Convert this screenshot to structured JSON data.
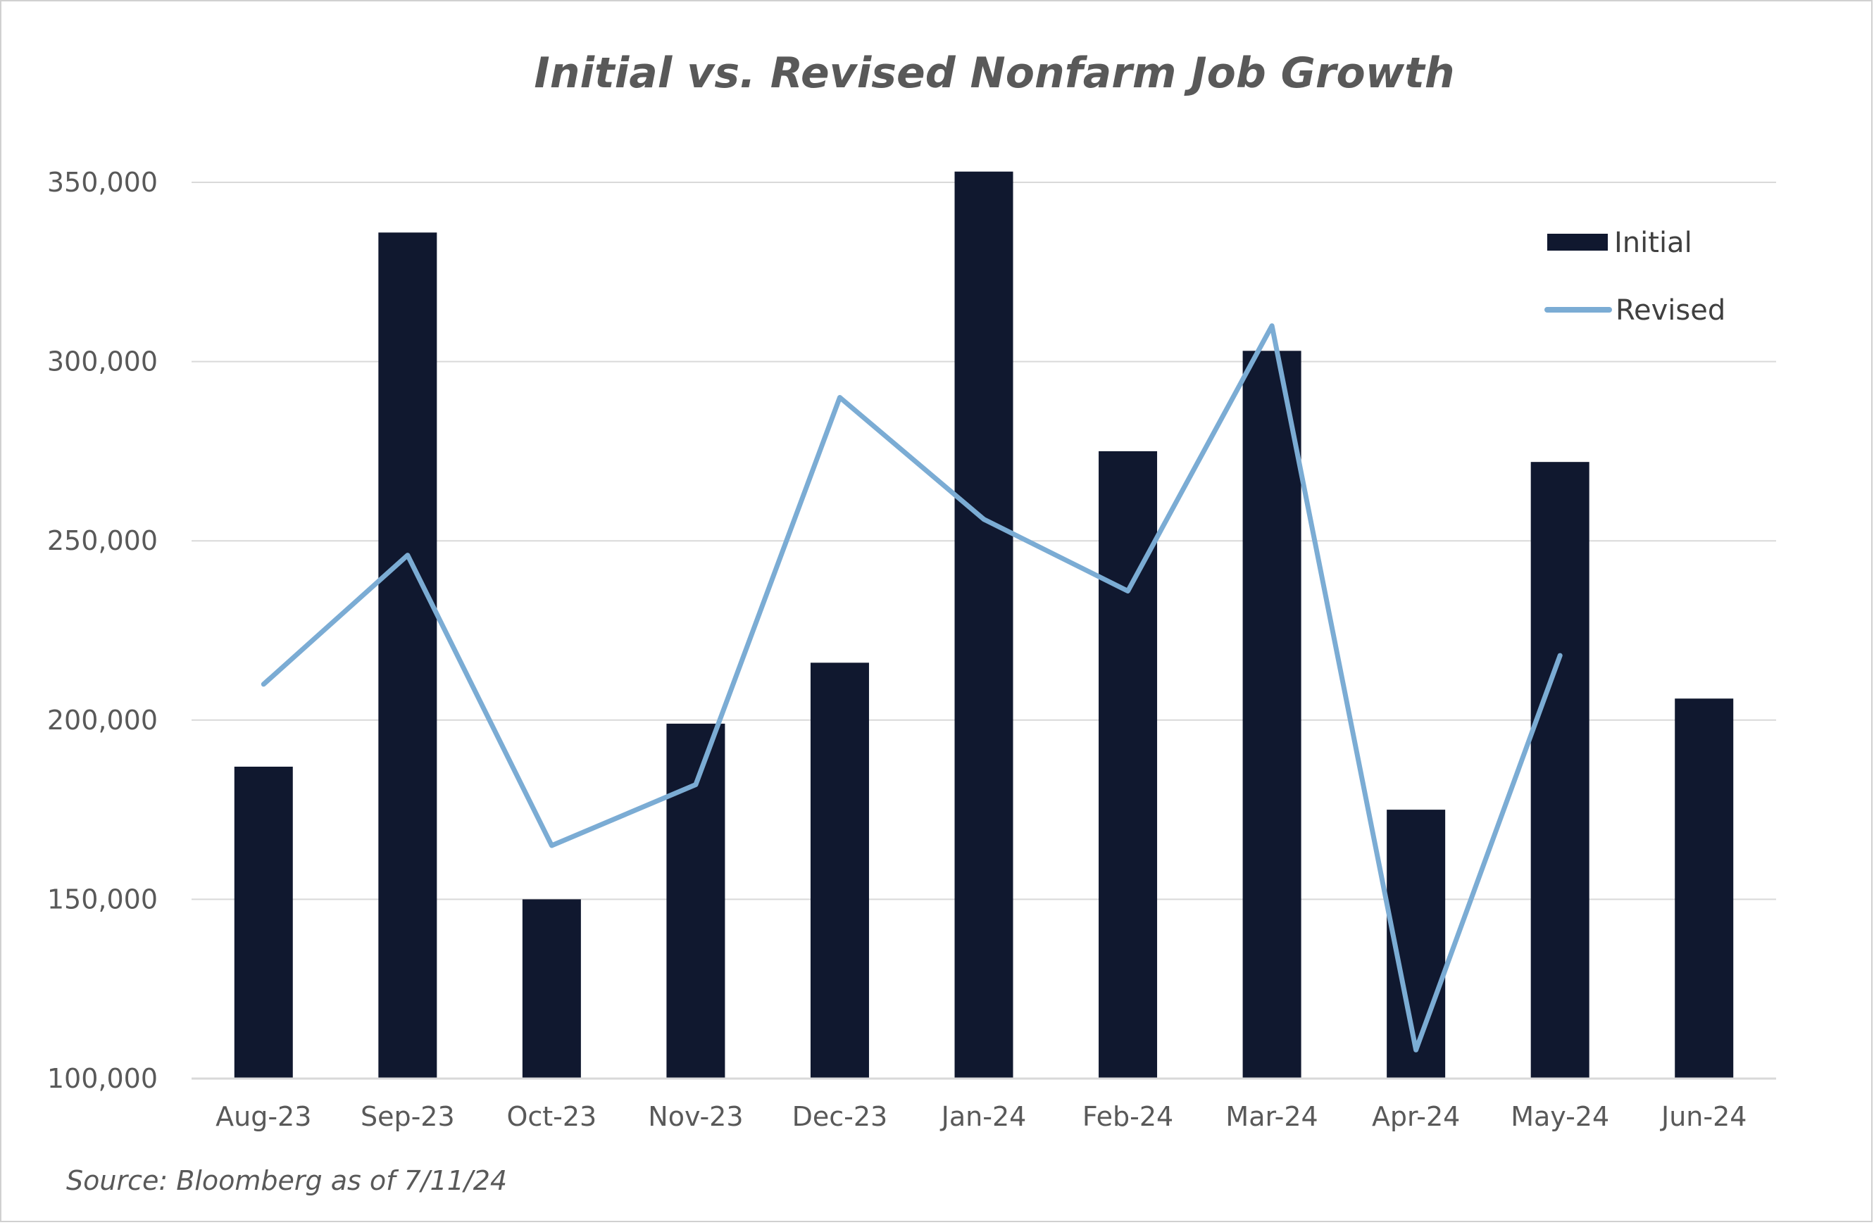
{
  "chart_data": {
    "type": "bar",
    "title": "Initial vs. Revised Nonfarm Job Growth",
    "xlabel": "",
    "ylabel": "",
    "categories": [
      "Aug-23",
      "Sep-23",
      "Oct-23",
      "Nov-23",
      "Dec-23",
      "Jan-24",
      "Feb-24",
      "Mar-24",
      "Apr-24",
      "May-24",
      "Jun-24"
    ],
    "series": [
      {
        "name": "Initial",
        "type": "bar",
        "color": "#10182f",
        "values": [
          187000,
          336000,
          150000,
          199000,
          216000,
          353000,
          275000,
          303000,
          175000,
          272000,
          206000
        ]
      },
      {
        "name": "Revised",
        "type": "line",
        "color": "#7bacd4",
        "values": [
          210000,
          246000,
          165000,
          182000,
          290000,
          256000,
          236000,
          310000,
          108000,
          218000,
          null
        ]
      }
    ],
    "ylim": [
      100000,
      350000
    ],
    "yticks": [
      100000,
      150000,
      200000,
      250000,
      300000,
      350000
    ],
    "ytick_labels": [
      "100,000",
      "150,000",
      "200,000",
      "250,000",
      "300,000",
      "350,000"
    ],
    "grid": true,
    "legend_position": "top-right",
    "source_note": "Source: Bloomberg as of 7/11/24"
  }
}
